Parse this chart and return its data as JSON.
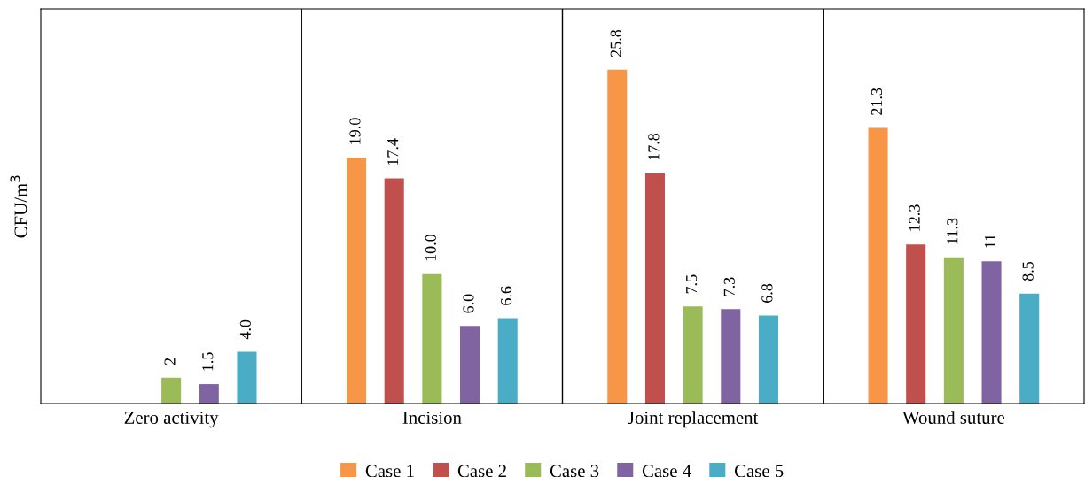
{
  "chart_data": {
    "type": "bar",
    "ylabel": "CFU/m$^{3}$",
    "categories": [
      "Zero activity",
      "Incision",
      "Joint replacement",
      "Wound suture"
    ],
    "ylim": [
      0,
      30.5
    ],
    "tick_labels": "x",
    "legend": "bottom",
    "grid": false,
    "series": [
      {
        "name": "Case 1",
        "color": "#f79646",
        "values": [
          null,
          19.0,
          25.8,
          21.3
        ],
        "value_labels": [
          null,
          "19.0",
          "25.8",
          "21.3"
        ]
      },
      {
        "name": "Case 2",
        "color": "#c0504d",
        "values": [
          null,
          17.4,
          17.8,
          12.3
        ],
        "value_labels": [
          null,
          "17.4",
          "17.8",
          "12.3"
        ]
      },
      {
        "name": "Case 3",
        "color": "#9bbb59",
        "values": [
          2,
          10.0,
          7.5,
          11.3
        ],
        "value_labels": [
          "2",
          "10.0",
          "7.5",
          "11.3"
        ]
      },
      {
        "name": "Case 4",
        "color": "#8064a2",
        "values": [
          1.5,
          6.0,
          7.3,
          11
        ],
        "value_labels": [
          "1.5",
          "6.0",
          "7.3",
          "11"
        ]
      },
      {
        "name": "Case 5",
        "color": "#4bacc6",
        "values": [
          4.0,
          6.6,
          6.8,
          8.5
        ],
        "value_labels": [
          "4.0",
          "6.6",
          "6.8",
          "8.5"
        ]
      }
    ]
  }
}
